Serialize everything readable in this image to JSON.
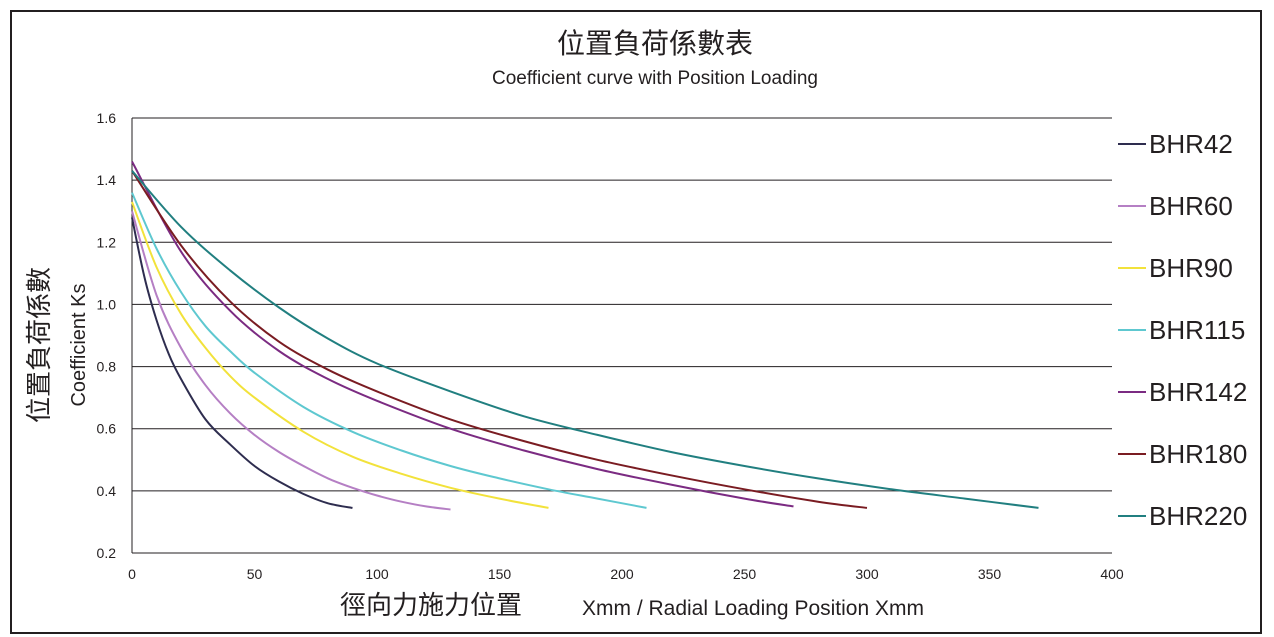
{
  "chart_data": {
    "type": "line",
    "title": "位置負荷係數表",
    "subtitle": "Coefficient curve with Position Loading",
    "xlabel_cn": "徑向力施力位置",
    "xlabel_en": "Xmm / Radial Loading Position Xmm",
    "ylabel_cn": "位置負荷係數",
    "ylabel_en": "Coefficient Ks",
    "xlim": [
      0,
      400
    ],
    "ylim": [
      0.2,
      1.6
    ],
    "xticks": [
      "0",
      "50",
      "100",
      "150",
      "200",
      "250",
      "300",
      "350",
      "400"
    ],
    "yticks": [
      "0.2",
      "0.4",
      "0.6",
      "0.8",
      "1.0",
      "1.2",
      "1.4",
      "1.6"
    ],
    "grid": "horizontal",
    "legend_position": "right",
    "series": [
      {
        "name": "BHR42",
        "color": "#2e2d4f",
        "x": [
          0,
          5,
          10,
          15,
          20,
          30,
          40,
          50,
          60,
          70,
          80,
          90
        ],
        "y": [
          1.28,
          1.09,
          0.95,
          0.84,
          0.76,
          0.63,
          0.55,
          0.48,
          0.43,
          0.39,
          0.36,
          0.345
        ]
      },
      {
        "name": "BHR60",
        "color": "#b57fc4",
        "x": [
          0,
          10,
          20,
          30,
          40,
          50,
          60,
          70,
          80,
          90,
          100,
          110,
          120,
          130
        ],
        "y": [
          1.3,
          1.03,
          0.86,
          0.74,
          0.65,
          0.58,
          0.525,
          0.48,
          0.44,
          0.41,
          0.385,
          0.365,
          0.35,
          0.34
        ]
      },
      {
        "name": "BHR90",
        "color": "#f2e23b",
        "x": [
          0,
          10,
          20,
          30,
          40,
          50,
          70,
          90,
          110,
          130,
          150,
          170
        ],
        "y": [
          1.33,
          1.12,
          0.97,
          0.86,
          0.77,
          0.7,
          0.59,
          0.51,
          0.455,
          0.41,
          0.375,
          0.345
        ]
      },
      {
        "name": "BHR115",
        "color": "#5ec8d0",
        "x": [
          0,
          10,
          20,
          30,
          40,
          50,
          70,
          90,
          110,
          130,
          150,
          170,
          190,
          210
        ],
        "y": [
          1.36,
          1.18,
          1.04,
          0.93,
          0.85,
          0.78,
          0.67,
          0.59,
          0.53,
          0.48,
          0.44,
          0.405,
          0.375,
          0.345
        ]
      },
      {
        "name": "BHR142",
        "color": "#7b2b82",
        "x": [
          0,
          20,
          40,
          60,
          80,
          100,
          130,
          160,
          190,
          220,
          250,
          270
        ],
        "y": [
          1.46,
          1.17,
          0.98,
          0.85,
          0.76,
          0.69,
          0.6,
          0.53,
          0.47,
          0.42,
          0.375,
          0.35
        ]
      },
      {
        "name": "BHR180",
        "color": "#7a1c22",
        "x": [
          0,
          20,
          40,
          60,
          80,
          100,
          130,
          160,
          190,
          220,
          250,
          280,
          300
        ],
        "y": [
          1.43,
          1.19,
          1.01,
          0.88,
          0.79,
          0.72,
          0.63,
          0.56,
          0.5,
          0.45,
          0.405,
          0.365,
          0.345
        ]
      },
      {
        "name": "BHR220",
        "color": "#217f80",
        "x": [
          0,
          20,
          40,
          60,
          80,
          100,
          130,
          160,
          190,
          220,
          250,
          280,
          310,
          340,
          370
        ],
        "y": [
          1.43,
          1.25,
          1.11,
          0.99,
          0.89,
          0.81,
          0.72,
          0.64,
          0.58,
          0.525,
          0.48,
          0.44,
          0.405,
          0.375,
          0.345
        ]
      }
    ]
  }
}
